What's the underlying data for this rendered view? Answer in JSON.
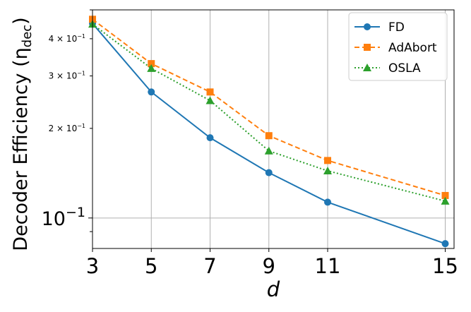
{
  "chart_data": {
    "type": "line",
    "xlabel": "d",
    "ylabel": "Decoder Efficiency (η",
    "ylabel_sub": "dec",
    "ylabel_close": ")",
    "yscale": "log",
    "xlim": [
      3,
      15.3
    ],
    "ylim": [
      0.079,
      0.5
    ],
    "grid": true,
    "legend_position": "top-right",
    "x": [
      3,
      5,
      7,
      9,
      11,
      15
    ],
    "x_tick_labels": [
      "3",
      "5",
      "7",
      "9",
      "11",
      "15"
    ],
    "y_ticks": [
      {
        "value": 0.4,
        "label_base": "4 × 10",
        "label_exp": "−1"
      },
      {
        "value": 0.3,
        "label_base": "3 × 10",
        "label_exp": "−1"
      },
      {
        "value": 0.2,
        "label_base": "2 × 10",
        "label_exp": "−1"
      },
      {
        "value": 0.1,
        "label_base": "10",
        "label_exp": "−1"
      }
    ],
    "series": [
      {
        "name": "FD",
        "color": "#1f77b4",
        "marker": "circle",
        "dash": "solid",
        "values": [
          0.45,
          0.265,
          0.186,
          0.142,
          0.113,
          0.082
        ]
      },
      {
        "name": "AdAbort",
        "color": "#ff7f0e",
        "marker": "square",
        "dash": "dashed",
        "values": [
          0.465,
          0.33,
          0.265,
          0.189,
          0.156,
          0.119
        ]
      },
      {
        "name": "OSLA",
        "color": "#2ca02c",
        "marker": "triangle",
        "dash": "dotted",
        "values": [
          0.448,
          0.318,
          0.248,
          0.168,
          0.144,
          0.114
        ]
      }
    ]
  }
}
